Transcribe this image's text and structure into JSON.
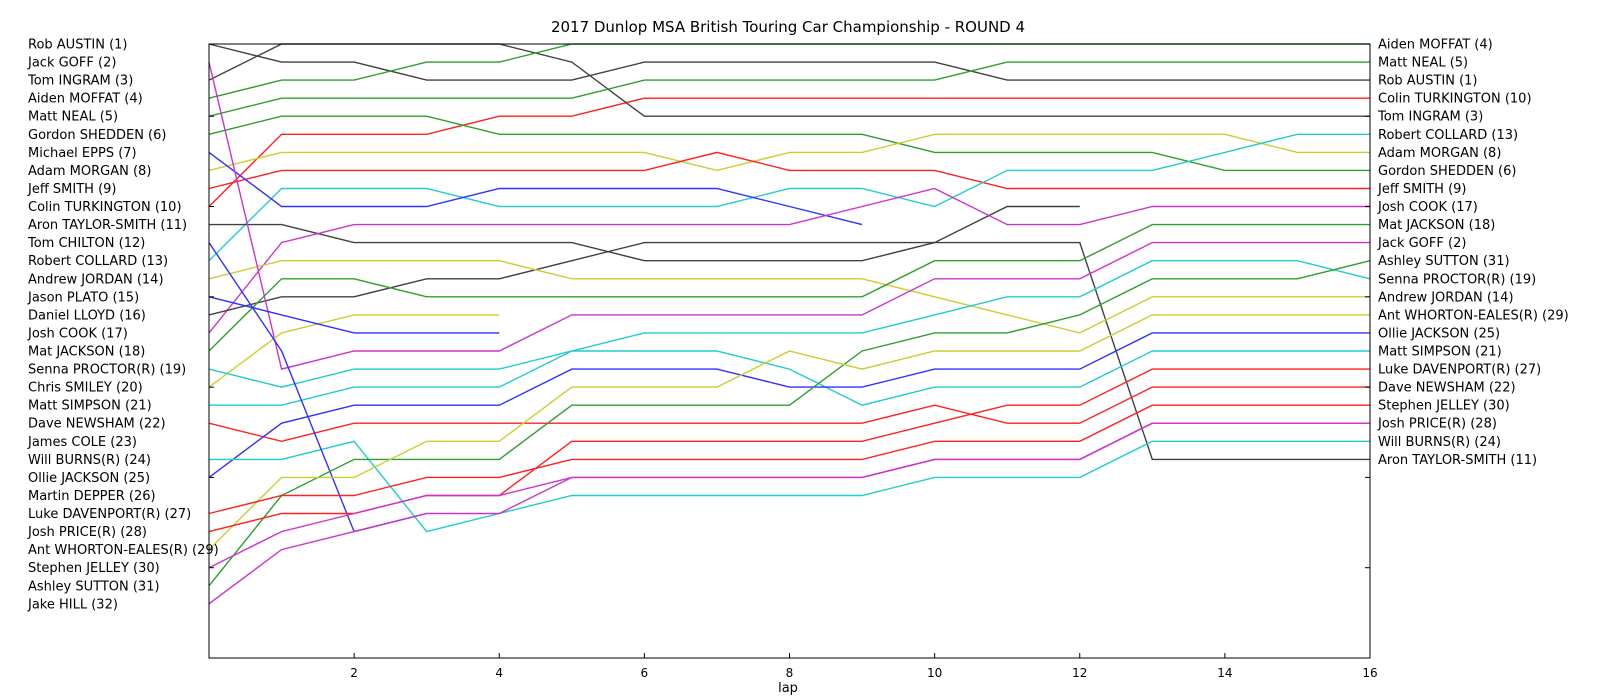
{
  "chart_data": {
    "type": "line",
    "title": "2017 Dunlop MSA British Touring Car Championship - ROUND 4",
    "xlabel": "lap",
    "ylabel": "",
    "xlim": [
      0,
      16
    ],
    "ylim": [
      1,
      35
    ],
    "y_inverted": true,
    "x_ticks": [
      2,
      4,
      6,
      8,
      10,
      12,
      14,
      16
    ],
    "grid": false,
    "left_labels": [
      "Rob AUSTIN (1)",
      "Jack GOFF (2)",
      "Tom INGRAM (3)",
      "Aiden MOFFAT (4)",
      "Matt NEAL (5)",
      "Gordon SHEDDEN (6)",
      "Michael EPPS (7)",
      "Adam MORGAN (8)",
      "Jeff SMITH (9)",
      "Colin TURKINGTON (10)",
      "Aron TAYLOR-SMITH (11)",
      "Tom CHILTON (12)",
      "Robert COLLARD (13)",
      "Andrew JORDAN (14)",
      "Jason PLATO (15)",
      "Daniel LLOYD (16)",
      "Josh COOK (17)",
      "Mat JACKSON (18)",
      "Senna PROCTOR(R) (19)",
      "Chris SMILEY (20)",
      "Matt SIMPSON (21)",
      "Dave NEWSHAM (22)",
      "James COLE (23)",
      "Will BURNS(R) (24)",
      "Ollie JACKSON (25)",
      "Martin DEPPER (26)",
      "Luke DAVENPORT(R) (27)",
      "Josh PRICE(R) (28)",
      "Ant WHORTON-EALES(R) (29)",
      "Stephen JELLEY (30)",
      "Ashley SUTTON (31)",
      "Jake HILL (32)"
    ],
    "right_labels": [
      "Aiden MOFFAT (4)",
      "Matt NEAL (5)",
      "Rob AUSTIN (1)",
      "Colin TURKINGTON (10)",
      "Tom INGRAM (3)",
      "Robert COLLARD (13)",
      "Adam MORGAN (8)",
      "Gordon SHEDDEN (6)",
      "Jeff SMITH (9)",
      "Josh COOK (17)",
      "Mat JACKSON (18)",
      "Jack GOFF (2)",
      "Ashley SUTTON (31)",
      "Senna PROCTOR(R) (19)",
      "Andrew JORDAN (14)",
      "Ant WHORTON-EALES(R) (29)",
      "Ollie JACKSON (25)",
      "Matt SIMPSON (21)",
      "Luke DAVENPORT(R) (27)",
      "Dave NEWSHAM (22)",
      "Stephen JELLEY (30)",
      "Josh PRICE(R) (28)",
      "Will BURNS(R) (24)",
      "Aron TAYLOR-SMITH (11)"
    ],
    "series": [
      {
        "color": "#404040",
        "laps": [
          0,
          1,
          2,
          3,
          4,
          5,
          6,
          7,
          8,
          9,
          10,
          11,
          12,
          13,
          14,
          15,
          16
        ],
        "pos": [
          1,
          2,
          2,
          3,
          3,
          3,
          2,
          2,
          2,
          2,
          2,
          3,
          3,
          3,
          3,
          3,
          3
        ]
      },
      {
        "color": "#ff2020",
        "laps": [
          0,
          1,
          2,
          3,
          4,
          5,
          6,
          7,
          8,
          9,
          10,
          11,
          12,
          13,
          14,
          15,
          16
        ],
        "pos": [
          10,
          6,
          6,
          6,
          5,
          5,
          4,
          4,
          4,
          4,
          4,
          4,
          4,
          4,
          4,
          4,
          4
        ]
      },
      {
        "color": "#404040",
        "laps": [
          0,
          1,
          2,
          3,
          4,
          5,
          6,
          7,
          8,
          9,
          10,
          11,
          12,
          13,
          14,
          15,
          16
        ],
        "pos": [
          3,
          1,
          1,
          1,
          1,
          2,
          5,
          5,
          5,
          5,
          5,
          5,
          5,
          5,
          5,
          5,
          5
        ]
      },
      {
        "color": "#2ca02c",
        "laps": [
          0,
          1,
          2,
          3,
          4,
          5,
          6,
          7,
          8,
          9,
          10,
          11,
          12,
          13,
          14,
          15,
          16
        ],
        "pos": [
          4,
          3,
          3,
          2,
          2,
          1,
          1,
          1,
          1,
          1,
          1,
          1,
          1,
          1,
          1,
          1,
          1
        ]
      },
      {
        "color": "#2ca02c",
        "laps": [
          0,
          1,
          2,
          3,
          4,
          5,
          6,
          7,
          8,
          9,
          10,
          11,
          12,
          13,
          14,
          15,
          16
        ],
        "pos": [
          5,
          4,
          4,
          4,
          4,
          4,
          3,
          3,
          3,
          3,
          3,
          2,
          2,
          2,
          2,
          2,
          2
        ]
      },
      {
        "color": "#2ca02c",
        "laps": [
          0,
          1,
          2,
          3,
          4,
          5,
          6,
          7,
          8,
          9,
          10,
          11,
          12,
          13,
          14,
          15,
          16
        ],
        "pos": [
          6,
          5,
          5,
          5,
          6,
          6,
          6,
          6,
          6,
          6,
          7,
          7,
          7,
          7,
          8,
          8,
          8
        ]
      },
      {
        "color": "#cccc33",
        "laps": [
          0,
          1,
          2,
          3,
          4,
          5,
          6,
          7,
          8,
          9,
          10,
          11,
          12,
          13,
          14,
          15,
          16
        ],
        "pos": [
          8,
          7,
          7,
          7,
          7,
          7,
          7,
          8,
          7,
          7,
          6,
          6,
          6,
          6,
          6,
          7,
          7
        ]
      },
      {
        "color": "#ff2020",
        "laps": [
          0,
          1,
          2,
          3,
          4,
          5,
          6,
          7,
          8,
          9,
          10,
          11,
          12,
          13,
          14,
          15,
          16
        ],
        "pos": [
          9,
          8,
          8,
          8,
          8,
          8,
          8,
          7,
          8,
          8,
          8,
          9,
          9,
          9,
          9,
          9,
          9
        ]
      },
      {
        "color": "#22cccc",
        "laps": [
          0,
          1,
          2,
          3,
          4,
          5,
          6,
          7,
          8,
          9,
          10,
          11,
          12,
          13,
          14,
          15,
          16
        ],
        "pos": [
          13,
          9,
          9,
          9,
          10,
          10,
          10,
          10,
          9,
          9,
          10,
          8,
          8,
          8,
          7,
          6,
          6
        ]
      },
      {
        "color": "#3030ff",
        "laps": [
          0,
          1,
          2,
          3,
          4,
          5,
          6,
          7,
          8,
          9
        ],
        "pos": [
          7,
          10,
          10,
          10,
          9,
          9,
          9,
          9,
          10,
          11
        ]
      },
      {
        "color": "#404040",
        "laps": [
          0,
          1,
          2,
          3,
          4,
          5,
          6,
          7,
          8,
          9,
          10,
          11,
          12
        ],
        "pos": [
          11,
          11,
          12,
          12,
          12,
          12,
          13,
          13,
          13,
          13,
          12,
          10,
          10
        ]
      },
      {
        "color": "#cc33cc",
        "laps": [
          0,
          1,
          2,
          3,
          4,
          5,
          6,
          7,
          8,
          9,
          10,
          11,
          12,
          13,
          14,
          15,
          16
        ],
        "pos": [
          17,
          12,
          11,
          11,
          11,
          11,
          11,
          11,
          11,
          10,
          9,
          11,
          11,
          10,
          10,
          10,
          10
        ]
      },
      {
        "color": "#404040",
        "laps": [
          0,
          1,
          2,
          3,
          4,
          5,
          6,
          7,
          8,
          9,
          10,
          11,
          12,
          13,
          14,
          15,
          16
        ],
        "pos": [
          16,
          15,
          15,
          14,
          14,
          13,
          12,
          12,
          12,
          12,
          12,
          12,
          12,
          24,
          24,
          24,
          24
        ]
      },
      {
        "color": "#cccc33",
        "laps": [
          0,
          1,
          2,
          3,
          4,
          5,
          6,
          7,
          8,
          9,
          10,
          11,
          12,
          13,
          14,
          15,
          16
        ],
        "pos": [
          14,
          13,
          13,
          13,
          13,
          14,
          14,
          14,
          14,
          14,
          15,
          16,
          17,
          15,
          15,
          15,
          15
        ]
      },
      {
        "color": "#2ca02c",
        "laps": [
          0,
          1,
          2,
          3,
          4,
          5,
          6,
          7,
          8,
          9,
          10,
          11,
          12,
          13,
          14,
          15,
          16
        ],
        "pos": [
          18,
          14,
          14,
          15,
          15,
          15,
          15,
          15,
          15,
          15,
          13,
          13,
          13,
          11,
          11,
          11,
          11
        ]
      },
      {
        "color": "#cc33cc",
        "laps": [
          0,
          1,
          2,
          3,
          4,
          5,
          6,
          7,
          8,
          9,
          10,
          11,
          12,
          13,
          14,
          15,
          16
        ],
        "pos": [
          2,
          19,
          18,
          18,
          18,
          16,
          16,
          16,
          16,
          16,
          14,
          14,
          14,
          12,
          12,
          12,
          12
        ]
      },
      {
        "color": "#cccc33",
        "laps": [
          0,
          1,
          2,
          3,
          4
        ],
        "pos": [
          20,
          17,
          16,
          16,
          16
        ]
      },
      {
        "color": "#3030ff",
        "laps": [
          0,
          1,
          2,
          3,
          4
        ],
        "pos": [
          15,
          16,
          17,
          17,
          17
        ]
      },
      {
        "color": "#22cccc",
        "laps": [
          0,
          1,
          2,
          3,
          4,
          5,
          6,
          7,
          8,
          9,
          10,
          11,
          12,
          13,
          14,
          15,
          16
        ],
        "pos": [
          19,
          20,
          19,
          19,
          19,
          18,
          18,
          18,
          19,
          21,
          20,
          20,
          20,
          18,
          18,
          18,
          18
        ]
      },
      {
        "color": "#22cccc",
        "laps": [
          0,
          1,
          2,
          3,
          4,
          5,
          6,
          7,
          8,
          9,
          10,
          11,
          12,
          13,
          14,
          15,
          16
        ],
        "pos": [
          21,
          21,
          20,
          20,
          20,
          18,
          17,
          17,
          17,
          17,
          16,
          15,
          15,
          13,
          13,
          13,
          14
        ]
      },
      {
        "color": "#ff2020",
        "laps": [
          0,
          1,
          2,
          3,
          4,
          5,
          6,
          7,
          8,
          9,
          10,
          11,
          12,
          13,
          14,
          15,
          16
        ],
        "pos": [
          22,
          23,
          22,
          22,
          22,
          22,
          22,
          22,
          22,
          22,
          21,
          22,
          22,
          20,
          20,
          20,
          20
        ]
      },
      {
        "color": "#3030ff",
        "laps": [
          0,
          1,
          2,
          3,
          4,
          5,
          6,
          7,
          8,
          9,
          10,
          11,
          12,
          13,
          14,
          15,
          16
        ],
        "pos": [
          25,
          22,
          21,
          21,
          21,
          19,
          19,
          19,
          20,
          20,
          19,
          19,
          19,
          17,
          17,
          17,
          17
        ]
      },
      {
        "color": "#22cccc",
        "laps": [
          0,
          1,
          2,
          3,
          4,
          5,
          6,
          7,
          8,
          9,
          10,
          11,
          12,
          13,
          14,
          15,
          16
        ],
        "pos": [
          24,
          24,
          23,
          28,
          27,
          26,
          26,
          26,
          26,
          26,
          25,
          25,
          25,
          23,
          23,
          23,
          23
        ]
      },
      {
        "color": "#3030ff",
        "laps": [
          0,
          1,
          2,
          3
        ],
        "pos": [
          12,
          18,
          28,
          27
        ]
      },
      {
        "color": "#2ca02c",
        "laps": [
          0,
          1,
          2,
          3,
          4,
          5,
          6,
          7,
          8,
          9,
          10,
          11,
          12,
          13,
          14,
          15,
          16
        ],
        "pos": [
          31,
          26,
          24,
          24,
          24,
          21,
          21,
          21,
          21,
          18,
          17,
          17,
          16,
          14,
          14,
          14,
          13
        ]
      },
      {
        "color": "#cccc33",
        "laps": [
          0,
          1,
          2,
          3,
          4,
          5,
          6,
          7,
          8,
          9,
          10,
          11,
          12,
          13,
          14,
          15,
          16
        ],
        "pos": [
          29,
          25,
          25,
          23,
          23,
          20,
          20,
          20,
          18,
          19,
          18,
          18,
          18,
          16,
          16,
          16,
          16
        ]
      },
      {
        "color": "#ff2020",
        "laps": [
          0,
          1,
          2,
          3,
          4,
          5,
          6,
          7,
          8,
          9,
          10,
          11,
          12,
          13,
          14,
          15,
          16
        ],
        "pos": [
          27,
          26,
          26,
          25,
          25,
          24,
          24,
          24,
          24,
          24,
          23,
          23,
          23,
          21,
          21,
          21,
          21
        ]
      },
      {
        "color": "#ff2020",
        "laps": [
          0,
          1,
          2,
          3,
          4,
          5,
          6,
          7,
          8,
          9,
          10,
          11,
          12,
          13,
          14,
          15,
          16
        ],
        "pos": [
          28,
          27,
          27,
          26,
          26,
          23,
          23,
          23,
          23,
          23,
          22,
          21,
          21,
          19,
          19,
          19,
          19
        ]
      },
      {
        "color": "#cc33cc",
        "laps": [
          0,
          1,
          2,
          3,
          4,
          5,
          6,
          7,
          8,
          9,
          10,
          11,
          12,
          13,
          14,
          15,
          16
        ],
        "pos": [
          30,
          28,
          27,
          26,
          26,
          25,
          25,
          25,
          25,
          25,
          24,
          24,
          24,
          22,
          22,
          22,
          22
        ]
      },
      {
        "color": "#cc33cc",
        "laps": [
          0,
          1,
          2,
          3,
          4,
          5,
          6,
          7,
          8,
          9,
          10,
          11,
          12,
          13,
          14,
          15,
          16
        ],
        "pos": [
          32,
          29,
          28,
          27,
          27,
          25,
          25,
          25,
          25,
          25,
          24,
          24,
          24,
          22,
          22,
          22,
          22
        ]
      }
    ]
  }
}
